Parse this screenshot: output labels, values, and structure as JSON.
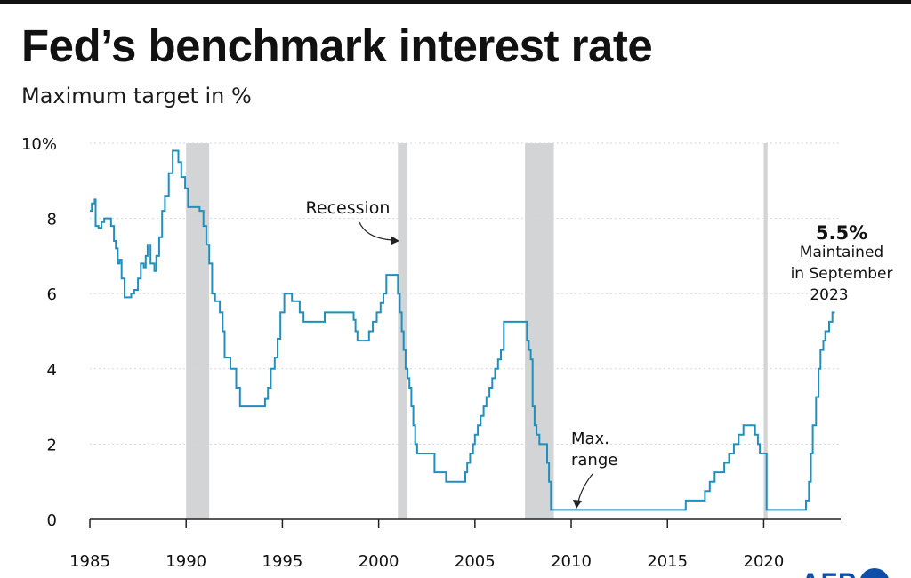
{
  "header": {
    "title": "Fed’s benchmark interest rate",
    "subtitle": "Maximum target in %"
  },
  "logo": {
    "text": "AFP"
  },
  "colors": {
    "line": "#1f8fbf",
    "recession": "#d3d4d5",
    "grid": "#d7d7d7",
    "text": "#111111"
  },
  "chart_data": {
    "type": "line",
    "title": "Fed’s benchmark interest rate",
    "subtitle": "Maximum target in %",
    "xlim": [
      1985,
      2024
    ],
    "ylim": [
      0,
      10
    ],
    "x_ticks": [
      "1985",
      "1990",
      "1995",
      "2000",
      "2005",
      "2010",
      "2015",
      "2020"
    ],
    "y_ticks": [
      "0",
      "2",
      "4",
      "6",
      "8",
      "10%"
    ],
    "grid": "horizontal dotted",
    "recessions": [
      [
        1990.0,
        1991.2
      ],
      [
        2001.0,
        2001.5
      ],
      [
        2007.6,
        2009.1
      ],
      [
        2020.0,
        2020.2
      ]
    ],
    "series": [
      {
        "points": [
          [
            1985.0,
            8.2
          ],
          [
            1985.1,
            8.4
          ],
          [
            1985.25,
            8.5
          ],
          [
            1985.3,
            7.8
          ],
          [
            1985.45,
            7.75
          ],
          [
            1985.6,
            7.9
          ],
          [
            1985.75,
            8.0
          ],
          [
            1986.1,
            7.8
          ],
          [
            1986.25,
            7.4
          ],
          [
            1986.35,
            7.2
          ],
          [
            1986.45,
            6.8
          ],
          [
            1986.55,
            6.9
          ],
          [
            1986.65,
            6.4
          ],
          [
            1986.8,
            5.9
          ],
          [
            1987.15,
            6.0
          ],
          [
            1987.3,
            6.1
          ],
          [
            1987.5,
            6.4
          ],
          [
            1987.65,
            6.8
          ],
          [
            1987.8,
            6.7
          ],
          [
            1987.9,
            7.0
          ],
          [
            1988.0,
            7.3
          ],
          [
            1988.15,
            6.8
          ],
          [
            1988.35,
            6.6
          ],
          [
            1988.45,
            7.0
          ],
          [
            1988.6,
            7.5
          ],
          [
            1988.75,
            8.2
          ],
          [
            1988.9,
            8.6
          ],
          [
            1989.1,
            9.2
          ],
          [
            1989.3,
            9.8
          ],
          [
            1989.5,
            9.8
          ],
          [
            1989.6,
            9.5
          ],
          [
            1989.75,
            9.1
          ],
          [
            1989.95,
            8.8
          ],
          [
            1990.1,
            8.3
          ],
          [
            1990.7,
            8.2
          ],
          [
            1990.9,
            7.8
          ],
          [
            1991.05,
            7.3
          ],
          [
            1991.2,
            6.8
          ],
          [
            1991.35,
            6.0
          ],
          [
            1991.5,
            5.8
          ],
          [
            1991.75,
            5.5
          ],
          [
            1991.9,
            5.0
          ],
          [
            1992.0,
            4.3
          ],
          [
            1992.3,
            4.0
          ],
          [
            1992.6,
            3.5
          ],
          [
            1992.8,
            3.0
          ],
          [
            1993.0,
            3.0
          ],
          [
            1994.0,
            3.0
          ],
          [
            1994.1,
            3.2
          ],
          [
            1994.25,
            3.5
          ],
          [
            1994.4,
            4.0
          ],
          [
            1994.6,
            4.3
          ],
          [
            1994.75,
            4.8
          ],
          [
            1994.9,
            5.5
          ],
          [
            1995.1,
            6.0
          ],
          [
            1995.5,
            5.8
          ],
          [
            1995.9,
            5.5
          ],
          [
            1996.1,
            5.25
          ],
          [
            1997.2,
            5.5
          ],
          [
            1998.7,
            5.3
          ],
          [
            1998.8,
            5.0
          ],
          [
            1998.9,
            4.75
          ],
          [
            1999.5,
            5.0
          ],
          [
            1999.7,
            5.25
          ],
          [
            1999.9,
            5.5
          ],
          [
            2000.1,
            5.75
          ],
          [
            2000.25,
            6.0
          ],
          [
            2000.4,
            6.5
          ],
          [
            2001.0,
            6.0
          ],
          [
            2001.1,
            5.5
          ],
          [
            2001.2,
            5.0
          ],
          [
            2001.3,
            4.5
          ],
          [
            2001.4,
            4.0
          ],
          [
            2001.5,
            3.75
          ],
          [
            2001.6,
            3.5
          ],
          [
            2001.7,
            3.0
          ],
          [
            2001.8,
            2.5
          ],
          [
            2001.9,
            2.0
          ],
          [
            2002.0,
            1.75
          ],
          [
            2002.9,
            1.25
          ],
          [
            2003.5,
            1.0
          ],
          [
            2004.5,
            1.25
          ],
          [
            2004.6,
            1.5
          ],
          [
            2004.75,
            1.75
          ],
          [
            2004.9,
            2.0
          ],
          [
            2005.0,
            2.25
          ],
          [
            2005.15,
            2.5
          ],
          [
            2005.3,
            2.75
          ],
          [
            2005.45,
            3.0
          ],
          [
            2005.6,
            3.25
          ],
          [
            2005.75,
            3.5
          ],
          [
            2005.9,
            3.75
          ],
          [
            2006.05,
            4.0
          ],
          [
            2006.2,
            4.25
          ],
          [
            2006.35,
            4.5
          ],
          [
            2006.5,
            5.25
          ],
          [
            2007.7,
            4.75
          ],
          [
            2007.8,
            4.5
          ],
          [
            2007.9,
            4.25
          ],
          [
            2008.0,
            3.0
          ],
          [
            2008.1,
            2.5
          ],
          [
            2008.2,
            2.25
          ],
          [
            2008.35,
            2.0
          ],
          [
            2008.75,
            1.5
          ],
          [
            2008.85,
            1.0
          ],
          [
            2008.95,
            0.25
          ],
          [
            2015.95,
            0.5
          ],
          [
            2016.95,
            0.75
          ],
          [
            2017.2,
            1.0
          ],
          [
            2017.45,
            1.25
          ],
          [
            2017.95,
            1.5
          ],
          [
            2018.2,
            1.75
          ],
          [
            2018.45,
            2.0
          ],
          [
            2018.7,
            2.25
          ],
          [
            2018.95,
            2.5
          ],
          [
            2019.55,
            2.25
          ],
          [
            2019.7,
            2.0
          ],
          [
            2019.8,
            1.75
          ],
          [
            2020.15,
            0.25
          ],
          [
            2022.2,
            0.5
          ],
          [
            2022.35,
            1.0
          ],
          [
            2022.45,
            1.75
          ],
          [
            2022.55,
            2.5
          ],
          [
            2022.72,
            3.25
          ],
          [
            2022.85,
            4.0
          ],
          [
            2022.95,
            4.5
          ],
          [
            2023.1,
            4.75
          ],
          [
            2023.2,
            5.0
          ],
          [
            2023.4,
            5.25
          ],
          [
            2023.57,
            5.5
          ],
          [
            2023.7,
            5.5
          ]
        ]
      }
    ],
    "annotations": [
      {
        "key": "recession",
        "text": "Recession"
      },
      {
        "key": "max_range",
        "lines": [
          "Max.",
          "range"
        ]
      },
      {
        "key": "latest",
        "value": "5.5%",
        "lines": [
          "Maintained",
          "in September",
          "2023"
        ]
      }
    ]
  }
}
